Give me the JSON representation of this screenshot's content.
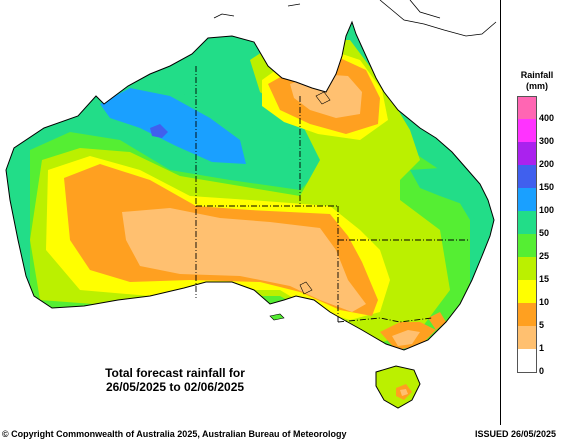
{
  "title_lines": [
    "Total forecast rainfall for",
    "26/05/2025 to 02/06/2025"
  ],
  "legend": {
    "title_lines": [
      "Rainfall",
      "(mm)"
    ],
    "bins": [
      {
        "label": "400",
        "color": "#ff66b3"
      },
      {
        "label": "300",
        "color": "#ff33ff"
      },
      {
        "label": "200",
        "color": "#aa22ee"
      },
      {
        "label": "150",
        "color": "#4060ee"
      },
      {
        "label": "100",
        "color": "#1aa0ff"
      },
      {
        "label": "50",
        "color": "#22dd88"
      },
      {
        "label": "25",
        "color": "#55ee33"
      },
      {
        "label": "15",
        "color": "#bbf000"
      },
      {
        "label": "10",
        "color": "#ffff00"
      },
      {
        "label": "5",
        "color": "#ffa020"
      },
      {
        "label": "1",
        "color": "#ffc070"
      },
      {
        "label": "0",
        "color": "#ffffff"
      }
    ]
  },
  "footer": {
    "copyright": "© Copyright Commonwealth of Australia 2025, Australian Bureau of Meteorology",
    "issued": "ISSUED 26/05/2025"
  }
}
